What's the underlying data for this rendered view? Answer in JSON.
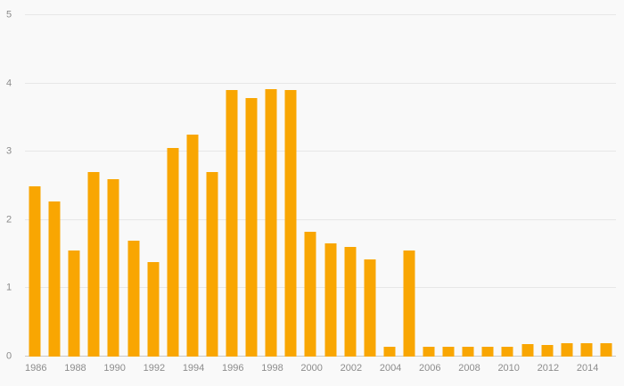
{
  "chart_data": {
    "type": "bar",
    "title": "",
    "xlabel": "",
    "ylabel": "",
    "categories": [
      "1986",
      "1987",
      "1988",
      "1989",
      "1990",
      "1991",
      "1992",
      "1993",
      "1994",
      "1995",
      "1996",
      "1997",
      "1998",
      "1999",
      "2000",
      "2001",
      "2002",
      "2003",
      "2004",
      "2005",
      "2006",
      "2007",
      "2008",
      "2009",
      "2010",
      "2011",
      "2012",
      "2013",
      "2014",
      "2015"
    ],
    "values": [
      2.5,
      2.27,
      1.55,
      2.7,
      2.6,
      1.7,
      1.38,
      3.05,
      3.25,
      2.7,
      3.9,
      3.78,
      3.92,
      3.91,
      1.83,
      1.66,
      1.6,
      1.42,
      0.15,
      1.56,
      0.14,
      0.15,
      0.14,
      0.15,
      0.15,
      0.18,
      0.17,
      0.2,
      0.2,
      0.2
    ],
    "ylim": [
      0,
      5
    ],
    "yticks": [
      0,
      1,
      2,
      3,
      4,
      5
    ],
    "xtick_labels": [
      "1986",
      "1988",
      "1990",
      "1992",
      "1994",
      "1996",
      "1998",
      "2000",
      "2002",
      "2004",
      "2006",
      "2008",
      "2010",
      "2012",
      "2014"
    ],
    "grid": true,
    "legend_position": "none",
    "colors": {
      "bar": "#F9A602",
      "background": "#f9f9f9",
      "gridline": "#e7e7e7",
      "axis_line": "#c9c9c9",
      "tick_text": "#8c8c8c"
    }
  }
}
